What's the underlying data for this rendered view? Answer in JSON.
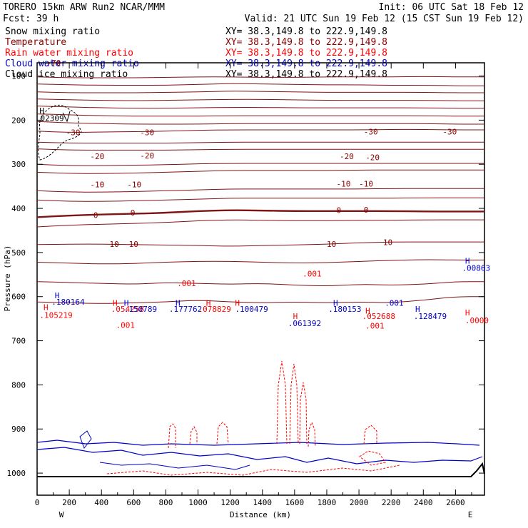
{
  "header": {
    "line1_left": "TORERO  15km ARW   Run2    NCAR/MMM",
    "line1_right": "Init: 06 UTC Sat 18 Feb 12",
    "line2_left": "Fcst:   39 h",
    "line2_right": "Valid: 21 UTC Sun 19 Feb 12 (15 CST Sun 19 Feb 12)"
  },
  "legend": [
    {
      "name": "Snow mixing ratio",
      "xy": "XY=  38.3,149.8 to 222.9,149.8",
      "color": "#000000"
    },
    {
      "name": "Temperature",
      "xy": "XY=  38.3,149.8 to 222.9,149.8",
      "color": "#8b0000"
    },
    {
      "name": "Rain water mixing ratio",
      "xy": "XY=  38.3,149.8 to 222.9,149.8",
      "color": "#ff0000"
    },
    {
      "name": "Cloud water mixing ratio",
      "xy": "XY=  38.3,149.8 to 222.9,149.8",
      "color": "#0000cc"
    },
    {
      "name": "Cloud ice mixing ratio",
      "xy": "XY=  38.3,149.8 to 222.9,149.8",
      "color": "#000000"
    }
  ],
  "chart_data": {
    "type": "contour-cross-section",
    "xlabel": "Distance (km)",
    "ylabel": "Pressure (hPa)",
    "x_ticks": [
      0,
      200,
      400,
      600,
      800,
      1000,
      1200,
      1400,
      1600,
      1800,
      2000,
      2200,
      2400,
      2600
    ],
    "x_range": [
      0,
      2780
    ],
    "y_ticks": [
      100,
      200,
      300,
      400,
      500,
      600,
      700,
      800,
      900,
      1000
    ],
    "y_range": [
      70,
      1050
    ],
    "end_labels": {
      "left": "W",
      "right": "E"
    },
    "temperature_contours": [
      {
        "p": [
          102,
          104,
          104,
          104,
          103,
          102,
          102,
          103,
          103,
          102,
          102,
          102,
          101,
          102
        ]
      },
      {
        "p": [
          118,
          120,
          121,
          121,
          121,
          119,
          117,
          118,
          119,
          120,
          120,
          121,
          121,
          122
        ]
      },
      {
        "p": [
          136,
          138,
          138,
          138,
          137,
          136,
          134,
          135,
          136,
          137,
          137,
          137,
          137,
          138
        ]
      },
      {
        "p": [
          152,
          154,
          155,
          156,
          155,
          154,
          153,
          153,
          154,
          155,
          155,
          155,
          155,
          156
        ]
      },
      {
        "p": [
          168,
          170,
          172,
          173,
          173,
          172,
          171,
          171,
          172,
          172,
          172,
          172,
          172,
          173
        ]
      },
      {
        "p": [
          186,
          188,
          190,
          191,
          191,
          191,
          190,
          190,
          190,
          190,
          190,
          190,
          190,
          191
        ]
      },
      {
        "p": [
          203,
          206,
          208,
          209,
          209,
          209,
          208,
          208,
          208,
          208,
          208,
          208,
          208,
          209
        ]
      },
      {
        "label": "-30",
        "p": [
          225,
          228,
          227,
          226,
          225,
          223,
          222,
          222,
          222,
          222,
          222,
          221,
          221,
          222
        ]
      },
      {
        "p": [
          250,
          252,
          252,
          252,
          252,
          251,
          250,
          250,
          250,
          250,
          250,
          250,
          250,
          250
        ]
      },
      {
        "p": [
          265,
          268,
          268,
          268,
          268,
          267,
          266,
          266,
          266,
          266,
          266,
          266,
          266,
          266
        ]
      },
      {
        "label": "-20",
        "p": [
          300,
          303,
          303,
          302,
          301,
          299,
          298,
          298,
          298,
          298,
          298,
          298,
          298,
          298
        ]
      },
      {
        "p": [
          318,
          321,
          321,
          320,
          318,
          316,
          314,
          314,
          314,
          314,
          313,
          313,
          313,
          313
        ]
      },
      {
        "label": "-10",
        "p": [
          360,
          363,
          363,
          362,
          360,
          358,
          356,
          356,
          356,
          356,
          356,
          355,
          355,
          355
        ]
      },
      {
        "p": [
          381,
          384,
          384,
          383,
          381,
          379,
          377,
          377,
          377,
          377,
          377,
          377,
          376,
          376
        ]
      },
      {
        "label": "0",
        "p": [
          420,
          416,
          414,
          412,
          410,
          406,
          404,
          405,
          406,
          406,
          406,
          406,
          407,
          407
        ]
      },
      {
        "p": [
          442,
          438,
          436,
          434,
          432,
          428,
          426,
          427,
          428,
          428,
          427,
          427,
          426,
          426
        ]
      },
      {
        "label": "10",
        "p": [
          482,
          481,
          481,
          482,
          483,
          484,
          486,
          484,
          483,
          481,
          478,
          476,
          476,
          476
        ]
      },
      {
        "p": [
          522,
          524,
          526,
          525,
          522,
          520,
          520,
          522,
          524,
          523,
          520,
          518,
          516,
          517
        ]
      },
      {
        "p": [
          566,
          568,
          570,
          572,
          568,
          570,
          572,
          570,
          574,
          576,
          572,
          574,
          572,
          566
        ]
      },
      {
        "p": [
          612,
          614,
          616,
          614,
          612,
          608,
          612,
          614,
          612,
          614,
          612,
          614,
          608,
          600
        ]
      }
    ],
    "annotations": [
      {
        "text": "-70",
        "d": 60,
        "p": 70,
        "color": "#8b0000"
      },
      {
        "text": "H",
        "d": 15,
        "p": 178,
        "color": "#000000"
      },
      {
        "text": "02309",
        "d": 20,
        "p": 195,
        "color": "#000000"
      },
      {
        "text": "-30",
        "d": 180,
        "p": 228,
        "color": "#8b0000"
      },
      {
        "text": "-30",
        "d": 640,
        "p": 228,
        "color": "#8b0000"
      },
      {
        "text": "-30",
        "d": 2030,
        "p": 226,
        "color": "#8b0000"
      },
      {
        "text": "-30",
        "d": 2520,
        "p": 226,
        "color": "#8b0000"
      },
      {
        "text": "-20",
        "d": 330,
        "p": 282,
        "color": "#8b0000"
      },
      {
        "text": "-20",
        "d": 640,
        "p": 280,
        "color": "#8b0000"
      },
      {
        "text": "-20",
        "d": 1880,
        "p": 282,
        "color": "#8b0000"
      },
      {
        "text": "-20",
        "d": 2040,
        "p": 284,
        "color": "#8b0000"
      },
      {
        "text": "-10",
        "d": 330,
        "p": 346,
        "color": "#8b0000"
      },
      {
        "text": "-10",
        "d": 560,
        "p": 346,
        "color": "#8b0000"
      },
      {
        "text": "-10",
        "d": 1860,
        "p": 344,
        "color": "#8b0000"
      },
      {
        "text": "-10",
        "d": 2000,
        "p": 344,
        "color": "#8b0000"
      },
      {
        "text": "0",
        "d": 350,
        "p": 415,
        "color": "#8b0000"
      },
      {
        "text": "0",
        "d": 580,
        "p": 410,
        "color": "#8b0000"
      },
      {
        "text": "0",
        "d": 1860,
        "p": 404,
        "color": "#8b0000"
      },
      {
        "text": "0",
        "d": 2030,
        "p": 403,
        "color": "#8b0000"
      },
      {
        "text": "10",
        "d": 450,
        "p": 481,
        "color": "#8b0000"
      },
      {
        "text": "10",
        "d": 570,
        "p": 481,
        "color": "#8b0000"
      },
      {
        "text": "10",
        "d": 1800,
        "p": 481,
        "color": "#8b0000"
      },
      {
        "text": "10",
        "d": 2150,
        "p": 477,
        "color": "#8b0000"
      },
      {
        "text": ".001",
        "d": 870,
        "p": 570,
        "color": "#ff0000"
      },
      {
        "text": ".001",
        "d": 1650,
        "p": 548,
        "color": "#ff0000"
      },
      {
        "text": ".001",
        "d": 490,
        "p": 664,
        "color": "#ff0000"
      },
      {
        "text": ".001",
        "d": 2040,
        "p": 666,
        "color": "#ff0000"
      },
      {
        "text": ".001",
        "d": 2160,
        "p": 614,
        "color": "#0000cc"
      },
      {
        "text": "H",
        "d": 110,
        "p": 597,
        "color": "#0000cc"
      },
      {
        "text": ".180164",
        "d": 90,
        "p": 612,
        "color": "#0000cc"
      },
      {
        "text": "H",
        "d": 40,
        "p": 624,
        "color": "#ff0000"
      },
      {
        "text": ".105219",
        "d": 15,
        "p": 642,
        "color": "#ff0000"
      },
      {
        "text": "H",
        "d": 470,
        "p": 614,
        "color": "#ff0000"
      },
      {
        "text": ".054258",
        "d": 460,
        "p": 628,
        "color": "#ff0000"
      },
      {
        "text": "H",
        "d": 540,
        "p": 614,
        "color": "#0000cc"
      },
      {
        "text": ".150789",
        "d": 540,
        "p": 628,
        "color": "#0000cc"
      },
      {
        "text": "H",
        "d": 860,
        "p": 614,
        "color": "#0000cc"
      },
      {
        "text": ".177762",
        "d": 820,
        "p": 628,
        "color": "#0000cc"
      },
      {
        "text": ".078829",
        "d": 1000,
        "p": 628,
        "color": "#ff0000"
      },
      {
        "text": "H",
        "d": 1050,
        "p": 614,
        "color": "#ff0000"
      },
      {
        "text": "H",
        "d": 1230,
        "p": 614,
        "color": "#ff0000"
      },
      {
        "text": ".100479",
        "d": 1230,
        "p": 628,
        "color": "#0000cc"
      },
      {
        "text": "H",
        "d": 1590,
        "p": 644,
        "color": "#ff0000"
      },
      {
        "text": ".061392",
        "d": 1560,
        "p": 660,
        "color": "#0000cc"
      },
      {
        "text": "H",
        "d": 1840,
        "p": 614,
        "color": "#0000cc"
      },
      {
        "text": ".180153",
        "d": 1810,
        "p": 628,
        "color": "#0000cc"
      },
      {
        "text": "H",
        "d": 2040,
        "p": 632,
        "color": "#ff0000"
      },
      {
        "text": ".052688",
        "d": 2020,
        "p": 644,
        "color": "#ff0000"
      },
      {
        "text": "H",
        "d": 2350,
        "p": 628,
        "color": "#0000cc"
      },
      {
        "text": ".128479",
        "d": 2340,
        "p": 644,
        "color": "#0000cc"
      },
      {
        "text": "H",
        "d": 2660,
        "p": 636,
        "color": "#ff0000"
      },
      {
        "text": ".0000",
        "d": 2660,
        "p": 654,
        "color": "#ff0000"
      },
      {
        "text": "H",
        "d": 2660,
        "p": 519,
        "color": "#0000cc"
      },
      {
        "text": ".00863",
        "d": 2640,
        "p": 535,
        "color": "#0000cc"
      }
    ]
  }
}
